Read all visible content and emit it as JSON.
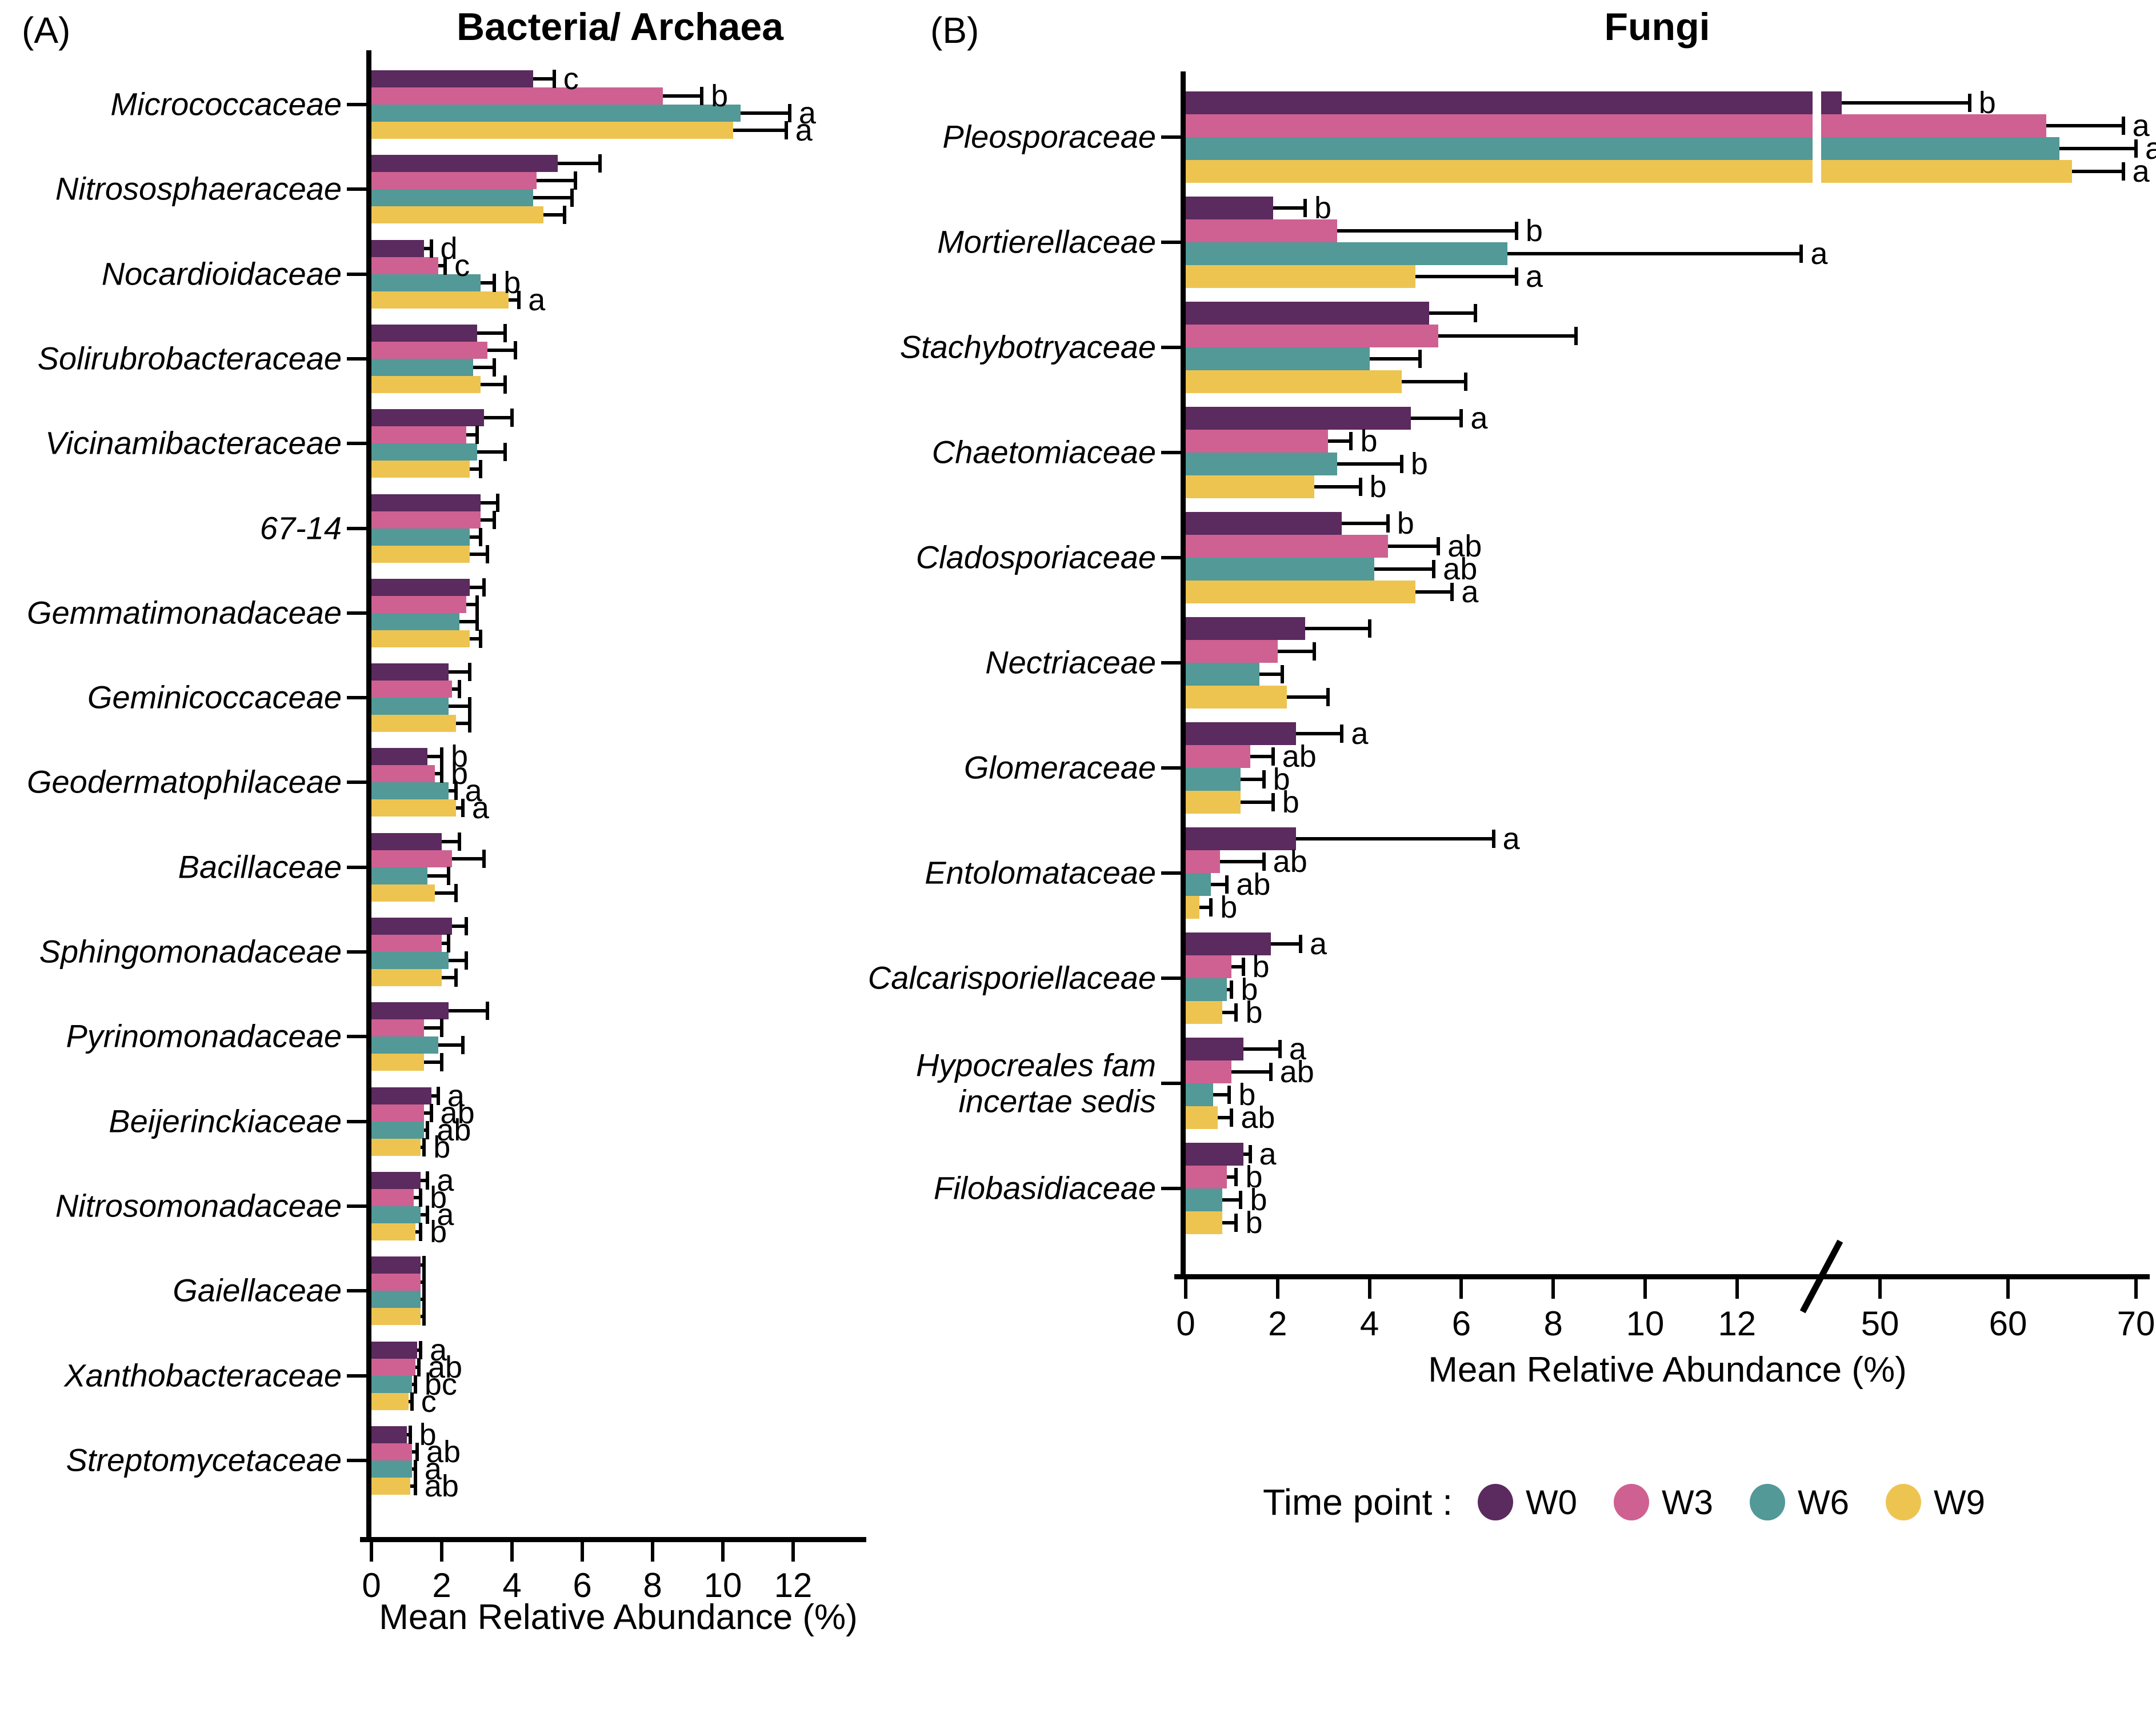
{
  "figure": {
    "panel_a_tag": "(A)",
    "panel_b_tag": "(B)"
  },
  "legend": {
    "title": "Time point :",
    "items": [
      {
        "label": "W0",
        "color": "#5B2A5E"
      },
      {
        "label": "W3",
        "color": "#CE6192"
      },
      {
        "label": "W6",
        "color": "#529997"
      },
      {
        "label": "W9",
        "color": "#EEC451"
      }
    ]
  },
  "chart_data": [
    {
      "panel": "A",
      "type": "bar",
      "orientation": "horizontal",
      "title": "Bacteria/ Archaea",
      "xlabel": "Mean Relative Abundance (%)",
      "x_ticks": [
        0,
        2,
        4,
        6,
        8,
        10,
        12
      ],
      "xlim": [
        0,
        13.8
      ],
      "grid": false,
      "series": [
        "W0",
        "W3",
        "W6",
        "W9"
      ],
      "value_meaning": "mean relative abundance (%), errors are upper error-bar tips, letters are significance groups",
      "rows": [
        {
          "family": "Micrococcaceae",
          "values": [
            4.6,
            8.3,
            10.5,
            10.3
          ],
          "errors": [
            5.2,
            9.4,
            11.9,
            11.8
          ],
          "letters": [
            "c",
            "b",
            "a",
            "a"
          ]
        },
        {
          "family": "Nitrososphaeraceae",
          "values": [
            5.3,
            4.7,
            4.6,
            4.9
          ],
          "errors": [
            6.5,
            5.8,
            5.7,
            5.5
          ],
          "letters": [
            "",
            "",
            "",
            ""
          ]
        },
        {
          "family": "Nocardioidaceae",
          "values": [
            1.5,
            1.9,
            3.1,
            3.9
          ],
          "errors": [
            1.7,
            2.1,
            3.5,
            4.2
          ],
          "letters": [
            "d",
            "c",
            "b",
            "a"
          ]
        },
        {
          "family": "Solirubrobacteraceae",
          "values": [
            3.0,
            3.3,
            2.9,
            3.1
          ],
          "errors": [
            3.8,
            4.1,
            3.5,
            3.8
          ],
          "letters": [
            "",
            "",
            "",
            ""
          ]
        },
        {
          "family": "Vicinamibacteraceae",
          "values": [
            3.2,
            2.7,
            3.0,
            2.8
          ],
          "errors": [
            4.0,
            3.0,
            3.8,
            3.1
          ],
          "letters": [
            "",
            "",
            "",
            ""
          ]
        },
        {
          "family": "67-14",
          "values": [
            3.1,
            3.1,
            2.8,
            2.8
          ],
          "errors": [
            3.6,
            3.5,
            3.1,
            3.3
          ],
          "letters": [
            "",
            "",
            "",
            ""
          ]
        },
        {
          "family": "Gemmatimonadaceae",
          "values": [
            2.8,
            2.7,
            2.5,
            2.8
          ],
          "errors": [
            3.2,
            3.0,
            3.0,
            3.1
          ],
          "letters": [
            "",
            "",
            "",
            ""
          ]
        },
        {
          "family": "Geminicoccaceae",
          "values": [
            2.2,
            2.3,
            2.2,
            2.4
          ],
          "errors": [
            2.8,
            2.5,
            2.8,
            2.8
          ],
          "letters": [
            "",
            "",
            "",
            ""
          ]
        },
        {
          "family": "Geodermatophilaceae",
          "values": [
            1.6,
            1.8,
            2.2,
            2.4
          ],
          "errors": [
            2.0,
            2.0,
            2.4,
            2.6
          ],
          "letters": [
            "b",
            "b",
            "a",
            "a"
          ]
        },
        {
          "family": "Bacillaceae",
          "values": [
            2.0,
            2.3,
            1.6,
            1.8
          ],
          "errors": [
            2.5,
            3.2,
            2.2,
            2.4
          ],
          "letters": [
            "",
            "",
            "",
            ""
          ]
        },
        {
          "family": "Sphingomonadaceae",
          "values": [
            2.3,
            2.0,
            2.2,
            2.0
          ],
          "errors": [
            2.7,
            2.2,
            2.7,
            2.4
          ],
          "letters": [
            "",
            "",
            "",
            ""
          ]
        },
        {
          "family": "Pyrinomonadaceae",
          "values": [
            2.2,
            1.5,
            1.9,
            1.5
          ],
          "errors": [
            3.3,
            2.0,
            2.6,
            2.0
          ],
          "letters": [
            "",
            "",
            "",
            ""
          ]
        },
        {
          "family": "Beijerinckiaceae",
          "values": [
            1.7,
            1.5,
            1.5,
            1.4
          ],
          "errors": [
            1.9,
            1.7,
            1.6,
            1.5
          ],
          "letters": [
            "a",
            "ab",
            "ab",
            "b"
          ]
        },
        {
          "family": "Nitrosomonadaceae",
          "values": [
            1.4,
            1.2,
            1.4,
            1.25
          ],
          "errors": [
            1.6,
            1.4,
            1.6,
            1.4
          ],
          "letters": [
            "a",
            "b",
            "a",
            "b"
          ]
        },
        {
          "family": "Gaiellaceae",
          "values": [
            1.4,
            1.4,
            1.4,
            1.4
          ],
          "errors": [
            1.5,
            1.5,
            1.5,
            1.5
          ],
          "letters": [
            "",
            "",
            "",
            ""
          ]
        },
        {
          "family": "Xanthobacteraceae",
          "values": [
            1.3,
            1.25,
            1.15,
            1.05
          ],
          "errors": [
            1.4,
            1.35,
            1.25,
            1.15
          ],
          "letters": [
            "a",
            "ab",
            "bc",
            "c"
          ]
        },
        {
          "family": "Streptomycetaceae",
          "values": [
            1.0,
            1.15,
            1.15,
            1.1
          ],
          "errors": [
            1.1,
            1.3,
            1.25,
            1.25
          ],
          "letters": [
            "b",
            "ab",
            "a",
            "ab"
          ]
        }
      ]
    },
    {
      "panel": "B",
      "type": "bar",
      "orientation": "horizontal",
      "title": "Fungi",
      "xlabel": "Mean Relative Abundance (%)",
      "x_ticks": [
        0,
        2,
        4,
        6,
        8,
        10,
        12
      ],
      "x_ticks_right": [
        50,
        60,
        70
      ],
      "xlim": [
        0,
        70
      ],
      "axis_break": {
        "between": [
          13.5,
          46.5
        ]
      },
      "grid": false,
      "series": [
        "W0",
        "W3",
        "W6",
        "W9"
      ],
      "value_meaning": "mean relative abundance (%), errors are upper error-bar tips, letters are significance groups",
      "rows": [
        {
          "family": "Pleosporaceae",
          "values": [
            47,
            63,
            64,
            65
          ],
          "errors": [
            57,
            69,
            70,
            69
          ],
          "letters": [
            "b",
            "a",
            "a",
            "a"
          ]
        },
        {
          "family": "Mortierellaceae",
          "values": [
            1.9,
            3.3,
            7.0,
            5.0
          ],
          "errors": [
            2.6,
            7.2,
            13.4,
            7.2
          ],
          "letters": [
            "b",
            "b",
            "a",
            "a"
          ]
        },
        {
          "family": "Stachybotryaceae",
          "values": [
            5.3,
            5.5,
            4.0,
            4.7
          ],
          "errors": [
            6.3,
            8.5,
            5.1,
            6.1
          ],
          "letters": [
            "",
            "",
            "",
            ""
          ]
        },
        {
          "family": "Chaetomiaceae",
          "values": [
            4.9,
            3.1,
            3.3,
            2.8
          ],
          "errors": [
            6.0,
            3.6,
            4.7,
            3.8
          ],
          "letters": [
            "a",
            "b",
            "b",
            "b"
          ]
        },
        {
          "family": "Cladosporiaceae",
          "values": [
            3.4,
            4.4,
            4.1,
            5.0
          ],
          "errors": [
            4.4,
            5.5,
            5.4,
            5.8
          ],
          "letters": [
            "b",
            "ab",
            "ab",
            "a"
          ]
        },
        {
          "family": "Nectriaceae",
          "values": [
            2.6,
            2.0,
            1.6,
            2.2
          ],
          "errors": [
            4.0,
            2.8,
            2.1,
            3.1
          ],
          "letters": [
            "",
            "",
            "",
            ""
          ]
        },
        {
          "family": "Glomeraceae",
          "values": [
            2.4,
            1.4,
            1.2,
            1.2
          ],
          "errors": [
            3.4,
            1.9,
            1.7,
            1.9
          ],
          "letters": [
            "a",
            "ab",
            "b",
            "b"
          ]
        },
        {
          "family": "Entolomataceae",
          "values": [
            2.4,
            0.75,
            0.55,
            0.3
          ],
          "errors": [
            6.7,
            1.7,
            0.9,
            0.55
          ],
          "letters": [
            "a",
            "ab",
            "ab",
            "b"
          ]
        },
        {
          "family": "Calcarisporiellaceae",
          "values": [
            1.85,
            1.0,
            0.9,
            0.8
          ],
          "errors": [
            2.5,
            1.25,
            1.0,
            1.1
          ],
          "letters": [
            "a",
            "b",
            "b",
            "b"
          ]
        },
        {
          "family": "Hypocreales fam\nincertae sedis",
          "values": [
            1.25,
            1.0,
            0.6,
            0.7
          ],
          "errors": [
            2.05,
            1.85,
            0.95,
            1.0
          ],
          "letters": [
            "a",
            "ab",
            "b",
            "ab"
          ]
        },
        {
          "family": "Filobasidiaceae",
          "values": [
            1.25,
            0.9,
            0.8,
            0.8
          ],
          "errors": [
            1.4,
            1.1,
            1.2,
            1.1
          ],
          "letters": [
            "a",
            "b",
            "b",
            "b"
          ]
        }
      ]
    }
  ]
}
